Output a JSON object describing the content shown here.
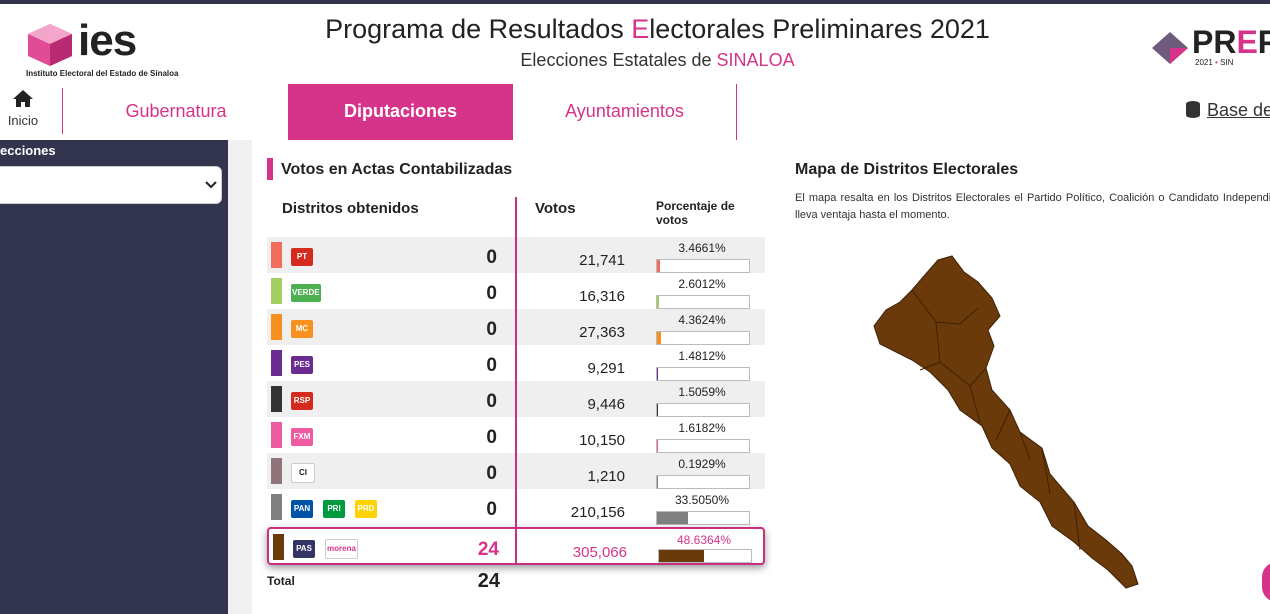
{
  "header": {
    "org_name": "ies",
    "org_subtitle": "Instituto Electoral del Estado de Sinaloa",
    "title": {
      "before": "Programa de Resultados ",
      "highlight": "E",
      "after": "lectorales Preliminares 2021"
    },
    "subtitle": {
      "before": "Elecciones Estatales de ",
      "highlight": "SINALOA"
    },
    "brand": {
      "before": "PR",
      "highlight": "E",
      "after": "P",
      "year": "2021",
      "state": "SIN"
    }
  },
  "nav": {
    "home": "Inicio",
    "tabs": [
      "Gubernatura",
      "Diputaciones",
      "Ayuntamientos"
    ],
    "active": 1,
    "database": "Base de datos"
  },
  "sidebar": {
    "label": "ecciones"
  },
  "table": {
    "title": "Votos en Actas Contabilizadas",
    "headers": [
      "Distritos obtenidos",
      "Votos",
      "Porcentaje de votos"
    ],
    "rows": [
      {
        "color": "#f26d5b",
        "logos": [
          "PT"
        ],
        "districts": 0,
        "votes": "21,741",
        "percentage": {
          "value": 3.4661,
          "label": "3.4661%"
        }
      },
      {
        "color": "#a3cf62",
        "logos": [
          "VERDE"
        ],
        "districts": 0,
        "votes": "16,316",
        "percentage": {
          "value": 2.6012,
          "label": "2.6012%"
        }
      },
      {
        "color": "#f7901e",
        "logos": [
          "MC"
        ],
        "districts": 0,
        "votes": "27,363",
        "percentage": {
          "value": 4.3624,
          "label": "4.3624%"
        }
      },
      {
        "color": "#6b2c91",
        "logos": [
          "PES"
        ],
        "districts": 0,
        "votes": "9,291",
        "percentage": {
          "value": 1.4812,
          "label": "1.4812%"
        }
      },
      {
        "color": "#333333",
        "logos": [
          "RSP"
        ],
        "districts": 0,
        "votes": "9,446",
        "percentage": {
          "value": 1.5059,
          "label": "1.5059%"
        }
      },
      {
        "color": "#ef5ba1",
        "logos": [
          "FXM"
        ],
        "districts": 0,
        "votes": "10,150",
        "percentage": {
          "value": 1.6182,
          "label": "1.6182%"
        }
      },
      {
        "color": "#8f7479",
        "logos": [
          "CI"
        ],
        "districts": 0,
        "votes": "1,210",
        "percentage": {
          "value": 0.1929,
          "label": "0.1929%"
        }
      },
      {
        "color": "#808080",
        "logos": [
          "PAN",
          "PRI",
          "PRD"
        ],
        "districts": 0,
        "votes": "210,156",
        "percentage": {
          "value": 33.505,
          "label": "33.5050%"
        }
      },
      {
        "color": "#6b3a0a",
        "logos": [
          "PAS",
          "morena"
        ],
        "districts": 24,
        "votes": "305,066",
        "percentage": {
          "value": 48.6364,
          "label": "48.6364%"
        },
        "highlighted": true
      }
    ],
    "total_label": "Total",
    "total": 24
  },
  "map": {
    "title": "Mapa de Distritos Electorales",
    "description": "El mapa resalta en los Distritos Electorales el Partido Político, Coalición o Candidato Independiente que lleva ventaja hasta el momento.",
    "color": "#6b3a0a"
  }
}
